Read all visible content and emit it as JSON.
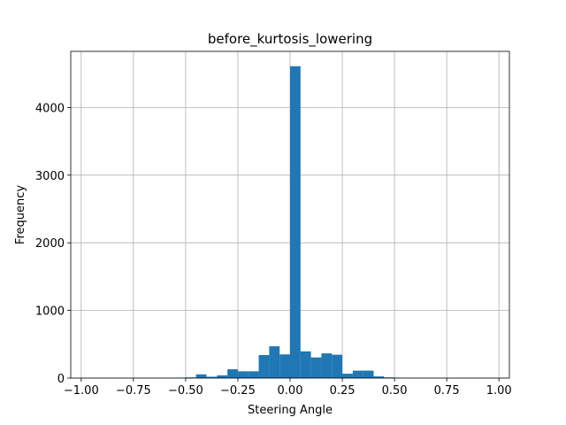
{
  "chart_data": {
    "type": "bar",
    "title": "before_kurtosis_lowering",
    "xlabel": "Steering Angle",
    "ylabel": "Frequency",
    "xlim": [
      -1.05,
      1.05
    ],
    "ylim": [
      0,
      4830
    ],
    "xticks": [
      -1.0,
      -0.75,
      -0.5,
      -0.25,
      0.0,
      0.25,
      0.5,
      0.75,
      1.0
    ],
    "xtick_labels": [
      "−1.00",
      "−0.75",
      "−0.50",
      "−0.25",
      "0.00",
      "0.25",
      "0.50",
      "0.75",
      "1.00"
    ],
    "yticks": [
      0,
      1000,
      2000,
      3000,
      4000
    ],
    "ytick_labels": [
      "0",
      "1000",
      "2000",
      "3000",
      "4000"
    ],
    "grid": true,
    "bar_color": "#1f77b4",
    "bins": [
      {
        "x0": -0.55,
        "x1": -0.5,
        "value": 5
      },
      {
        "x0": -0.5,
        "x1": -0.45,
        "value": 10
      },
      {
        "x0": -0.45,
        "x1": -0.4,
        "value": 55
      },
      {
        "x0": -0.4,
        "x1": -0.35,
        "value": 20
      },
      {
        "x0": -0.35,
        "x1": -0.3,
        "value": 40
      },
      {
        "x0": -0.3,
        "x1": -0.25,
        "value": 130
      },
      {
        "x0": -0.25,
        "x1": -0.2,
        "value": 100
      },
      {
        "x0": -0.2,
        "x1": -0.15,
        "value": 100
      },
      {
        "x0": -0.15,
        "x1": -0.1,
        "value": 340
      },
      {
        "x0": -0.1,
        "x1": -0.05,
        "value": 470
      },
      {
        "x0": -0.05,
        "x1": 0.0,
        "value": 350
      },
      {
        "x0": 0.0,
        "x1": 0.05,
        "value": 4610
      },
      {
        "x0": 0.05,
        "x1": 0.1,
        "value": 395
      },
      {
        "x0": 0.1,
        "x1": 0.15,
        "value": 305
      },
      {
        "x0": 0.15,
        "x1": 0.2,
        "value": 365
      },
      {
        "x0": 0.2,
        "x1": 0.25,
        "value": 345
      },
      {
        "x0": 0.25,
        "x1": 0.3,
        "value": 65
      },
      {
        "x0": 0.3,
        "x1": 0.35,
        "value": 110
      },
      {
        "x0": 0.35,
        "x1": 0.4,
        "value": 110
      },
      {
        "x0": 0.4,
        "x1": 0.45,
        "value": 25
      },
      {
        "x0": 0.45,
        "x1": 0.5,
        "value": 10
      },
      {
        "x0": 0.5,
        "x1": 0.55,
        "value": 5
      }
    ]
  }
}
